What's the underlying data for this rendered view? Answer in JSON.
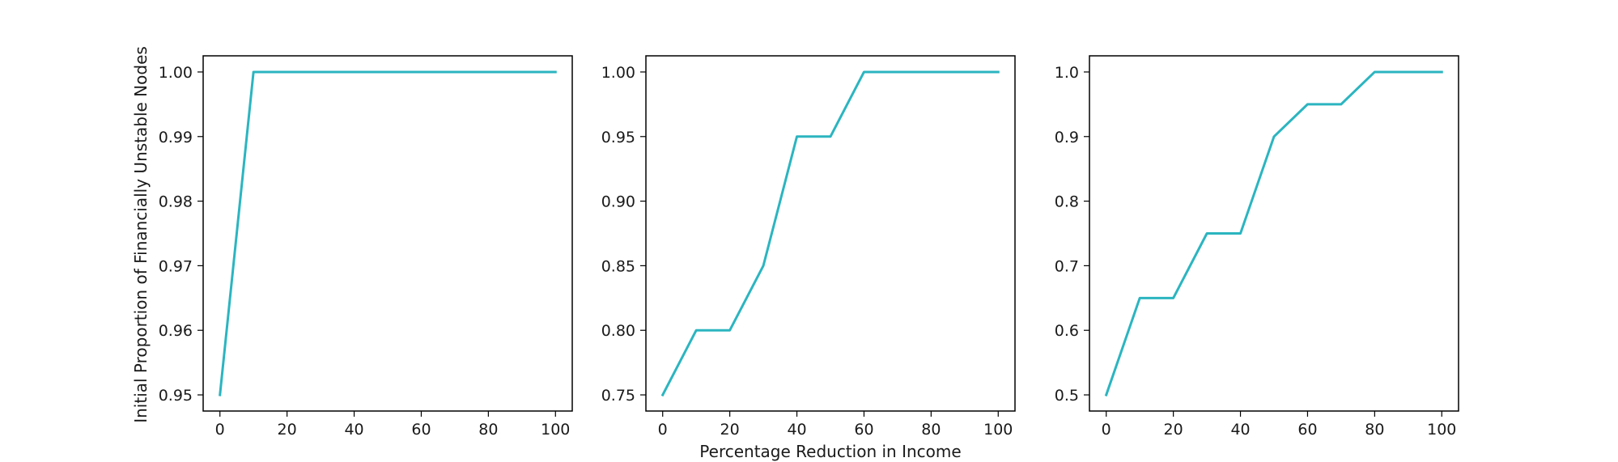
{
  "figure": {
    "xlabel": "Percentage Reduction in Income",
    "ylabel": "Initial Proportion of Financially Unstable Nodes",
    "line_color": "#2bb5c0"
  },
  "chart_data": [
    {
      "type": "line",
      "x": [
        0,
        10,
        20,
        30,
        40,
        50,
        60,
        70,
        80,
        90,
        100
      ],
      "values": [
        0.95,
        1.0,
        1.0,
        1.0,
        1.0,
        1.0,
        1.0,
        1.0,
        1.0,
        1.0,
        1.0
      ],
      "xlim": [
        -5,
        105
      ],
      "ylim": [
        0.9475,
        1.0025
      ],
      "xticks": [
        0,
        20,
        40,
        60,
        80,
        100
      ],
      "yticks": [
        0.95,
        0.96,
        0.97,
        0.98,
        0.99,
        1.0
      ],
      "ytick_labels": [
        "0.95",
        "0.96",
        "0.97",
        "0.98",
        "0.99",
        "1.00"
      ]
    },
    {
      "type": "line",
      "x": [
        0,
        10,
        20,
        30,
        40,
        50,
        60,
        70,
        80,
        90,
        100
      ],
      "values": [
        0.75,
        0.8,
        0.8,
        0.85,
        0.95,
        0.95,
        1.0,
        1.0,
        1.0,
        1.0,
        1.0
      ],
      "xlim": [
        -5,
        105
      ],
      "ylim": [
        0.7375,
        1.0125
      ],
      "xticks": [
        0,
        20,
        40,
        60,
        80,
        100
      ],
      "yticks": [
        0.75,
        0.8,
        0.85,
        0.9,
        0.95,
        1.0
      ],
      "ytick_labels": [
        "0.75",
        "0.80",
        "0.85",
        "0.90",
        "0.95",
        "1.00"
      ]
    },
    {
      "type": "line",
      "x": [
        0,
        10,
        20,
        30,
        40,
        50,
        60,
        70,
        80,
        90,
        100
      ],
      "values": [
        0.5,
        0.65,
        0.65,
        0.75,
        0.75,
        0.9,
        0.95,
        0.95,
        1.0,
        1.0,
        1.0
      ],
      "xlim": [
        -5,
        105
      ],
      "ylim": [
        0.475,
        1.025
      ],
      "xticks": [
        0,
        20,
        40,
        60,
        80,
        100
      ],
      "yticks": [
        0.5,
        0.6,
        0.7,
        0.8,
        0.9,
        1.0
      ],
      "ytick_labels": [
        "0.5",
        "0.6",
        "0.7",
        "0.8",
        "0.9",
        "1.0"
      ]
    }
  ]
}
